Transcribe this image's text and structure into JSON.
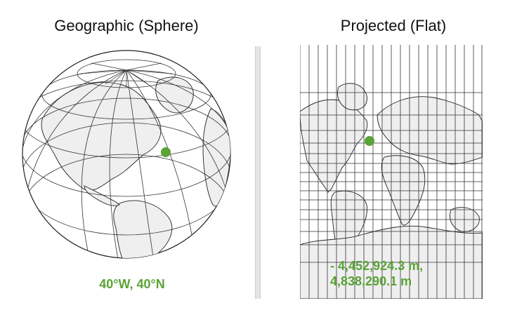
{
  "left_panel": {
    "title": "Geographic (Sphere)",
    "coordinate_label": "40°W, 40°N",
    "point_color": "#5aa336"
  },
  "right_panel": {
    "title": "Projected (Flat)",
    "coordinate_line1": "- 4,452,924.3 m,",
    "coordinate_line2": "4,838,290.1 m",
    "point_color": "#5aa336"
  },
  "colors": {
    "land": "#efefef",
    "grid": "#333333",
    "accent_green": "#5aa336"
  }
}
